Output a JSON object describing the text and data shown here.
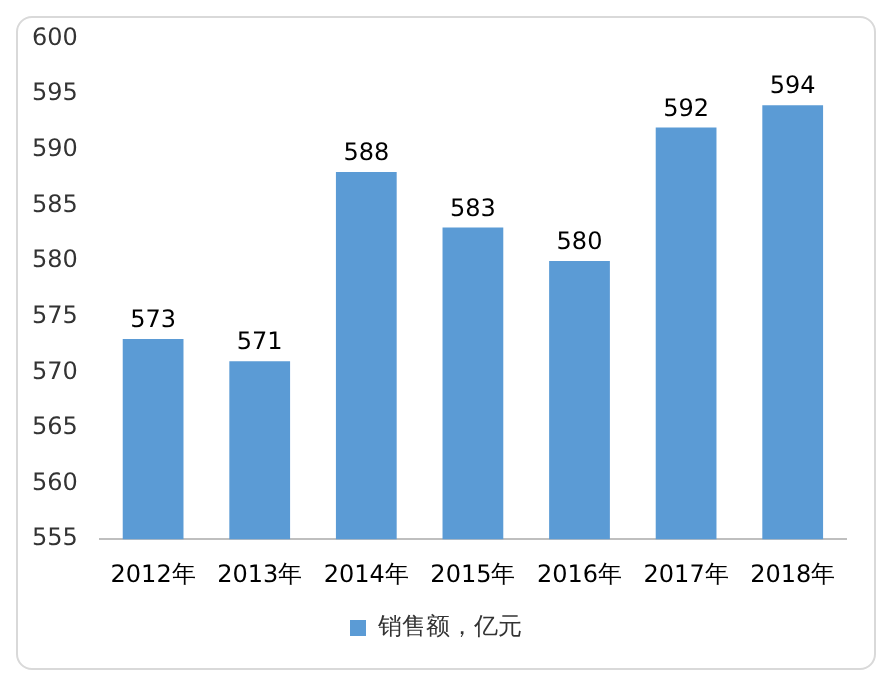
{
  "chart_data": {
    "type": "bar",
    "categories": [
      "2012年",
      "2013年",
      "2014年",
      "2015年",
      "2016年",
      "2017年",
      "2018年"
    ],
    "series": [
      {
        "name": "销售额，亿元",
        "color": "#5b9bd5",
        "values": [
          573,
          571,
          588,
          583,
          580,
          592,
          594
        ]
      }
    ],
    "ylim": [
      555,
      600
    ],
    "yticks": [
      555,
      560,
      565,
      570,
      575,
      580,
      585,
      590,
      595,
      600
    ],
    "grid": false,
    "legend": "bottom",
    "data_labels": true
  }
}
